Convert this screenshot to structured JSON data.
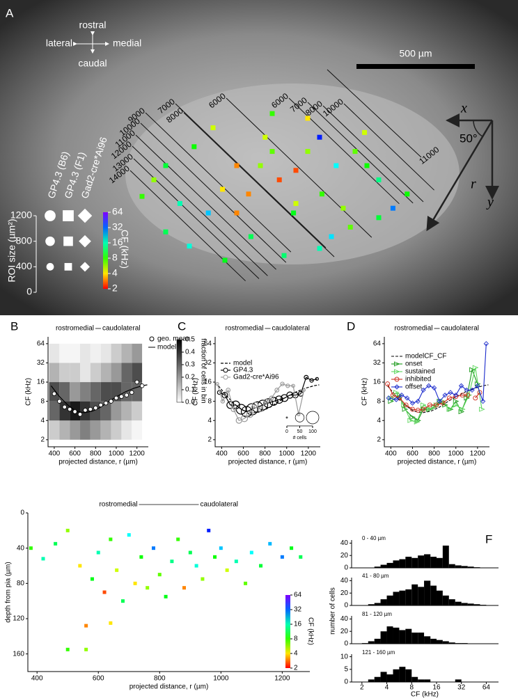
{
  "chart_data": [
    {
      "type": "map",
      "label": "A",
      "rostral": "rostral",
      "caudal": "caudal",
      "lateral": "lateral",
      "medial": "medial",
      "scale_bar": "500 µm",
      "x_axis": "x",
      "y_axis": "y",
      "r_axis": "r",
      "angle": "50°",
      "isolines": [
        7000,
        6000,
        9000,
        8000,
        10000,
        11000,
        12000,
        13000,
        14000,
        6000,
        7000,
        8000,
        10000,
        11000
      ],
      "datasets": [
        "GP4.3 (B6)",
        "GP4.3 (F1)",
        "Gad2-cre*Ai96"
      ],
      "size_label": "ROI size (µm²)",
      "size_ticks": [
        0,
        400,
        800,
        1200
      ],
      "colorbar_label": "CF (kHz)",
      "colorbar_ticks": [
        2,
        4,
        8,
        16,
        32,
        64
      ],
      "colormap": "rainbow",
      "x": [
        600,
        650,
        700,
        760,
        820,
        880,
        940,
        1000,
        1060,
        1120,
        1180,
        1240,
        1300,
        1360,
        1420,
        1480,
        1540,
        1600,
        1660,
        1720,
        700,
        800,
        900,
        1000,
        1100,
        1200,
        1300,
        1400,
        1500,
        1600,
        1050,
        1150,
        1250,
        1350,
        1450,
        1550,
        950,
        1250,
        1350,
        1150
      ],
      "y": [
        830,
        760,
        700,
        860,
        620,
        900,
        800,
        700,
        1000,
        580,
        760,
        900,
        640,
        820,
        700,
        960,
        560,
        760,
        880,
        820,
        980,
        1040,
        540,
        900,
        700,
        1080,
        500,
        1000,
        640,
        920,
        820,
        480,
        720,
        580,
        880,
        700,
        1100,
        860,
        1050,
        640
      ],
      "values": [
        8,
        6,
        11,
        16,
        9,
        24,
        4,
        3,
        12,
        5,
        2.5,
        10,
        6,
        8,
        20,
        7,
        5,
        14,
        30,
        9,
        12,
        18,
        5,
        3,
        6,
        13,
        4,
        22,
        7,
        11,
        3,
        8,
        2.5,
        40,
        6,
        9,
        10,
        5,
        16,
        7
      ]
    },
    {
      "type": "heatmap",
      "label": "B",
      "left": "rostromedial",
      "right": "caudolateral",
      "xlabel": "projected distance, r (µm)",
      "ylabel": "CF (kHz)",
      "xlim": [
        340,
        1310
      ],
      "xticks": [
        400,
        600,
        800,
        1000,
        1200
      ],
      "ylim": [
        1.55,
        82
      ],
      "yticks": [
        2,
        4,
        8,
        16,
        32,
        64
      ],
      "log_y": true,
      "heatmap": {
        "x_bins": [
          350,
          450,
          550,
          650,
          750,
          850,
          950,
          1050,
          1150,
          1250
        ],
        "y_bins": [
          2,
          4,
          8,
          16,
          32,
          64
        ],
        "values": [
          [
            0.1,
            0.15,
            0.2,
            0.25,
            0.2,
            0.15,
            0.1,
            0.05,
            0.02
          ],
          [
            0.3,
            0.4,
            0.45,
            0.4,
            0.35,
            0.3,
            0.2,
            0.15,
            0.1
          ],
          [
            0.35,
            0.3,
            0.2,
            0.25,
            0.3,
            0.35,
            0.35,
            0.3,
            0.3
          ],
          [
            0.15,
            0.1,
            0.1,
            0.05,
            0.1,
            0.15,
            0.2,
            0.3,
            0.35
          ],
          [
            0.05,
            0.02,
            0.02,
            0.05,
            0.03,
            0.05,
            0.1,
            0.15,
            0.2
          ]
        ]
      },
      "colorbar_label": "fraction of cells in bin",
      "colorbar_ticks": [
        {
          "value": 0,
          "label": "0.0"
        },
        0.1,
        0.2,
        0.3,
        0.4,
        0.5
      ],
      "series": [
        {
          "name": "geo. mean",
          "color": "#000",
          "x": [
            400,
            450,
            500,
            550,
            600,
            650,
            700,
            750,
            800,
            850,
            900,
            950,
            1000,
            1050,
            1100,
            1150,
            1200,
            1250
          ],
          "values": [
            10.5,
            8,
            6.5,
            6,
            5.5,
            5,
            5.8,
            6,
            6.3,
            7,
            7.5,
            8,
            9,
            9.5,
            10,
            11,
            16,
            14
          ]
        },
        {
          "name": "model",
          "color": "#000",
          "x": [
            370,
            450,
            530,
            610,
            690,
            770,
            850,
            930,
            1010,
            1090,
            1170,
            1250,
            1300
          ],
          "values": [
            14,
            9.5,
            7,
            5.6,
            5.3,
            5.6,
            6.5,
            8,
            9.6,
            11.3,
            12.8,
            14,
            14.5
          ]
        }
      ]
    },
    {
      "type": "line",
      "label": "C",
      "left": "rostromedial",
      "right": "caudolateral",
      "xlabel": "projected distance, r (µm)",
      "ylabel": "CF (kHz)",
      "xlim": [
        340,
        1310
      ],
      "xticks": [
        400,
        600,
        800,
        1000,
        1200
      ],
      "ylim": [
        1.55,
        82
      ],
      "yticks": [
        2,
        4,
        8,
        16,
        32,
        64
      ],
      "log_y": true,
      "size_label": "# cells",
      "size_ticks": [
        0,
        50,
        100
      ],
      "series": [
        {
          "name": "model",
          "color": "#000",
          "dash": true,
          "x": [
            370,
            450,
            530,
            610,
            690,
            770,
            850,
            930,
            1010,
            1090,
            1170,
            1250,
            1300
          ],
          "values": [
            14,
            9.5,
            7,
            5.6,
            5.3,
            5.6,
            6.5,
            8,
            9.6,
            11.3,
            12.8,
            14,
            14.5
          ]
        },
        {
          "name": "GP4.3",
          "color": "#000",
          "x": [
            380,
            430,
            480,
            530,
            580,
            630,
            680,
            730,
            780,
            830,
            880,
            930,
            980,
            1030,
            1080,
            1130,
            1180,
            1230,
            1280
          ],
          "values": [
            11,
            10,
            7,
            7,
            6,
            5.5,
            6,
            6.5,
            7,
            7.5,
            8,
            8.5,
            9,
            10,
            10,
            10.5,
            19,
            17,
            18
          ],
          "sizes": [
            10,
            20,
            30,
            40,
            60,
            70,
            80,
            70,
            60,
            50,
            40,
            35,
            30,
            25,
            20,
            15,
            10,
            8,
            5
          ]
        },
        {
          "name": "Gad2-cre*Ai96",
          "color": "#999",
          "x": [
            360,
            410,
            460,
            510,
            560,
            610,
            660,
            710,
            760,
            810,
            860,
            910,
            960,
            1010,
            1060,
            1110,
            1160
          ],
          "values": [
            15,
            8,
            12,
            6,
            4,
            4.3,
            5,
            7,
            6,
            8,
            9,
            12,
            15,
            14,
            14,
            5,
            12
          ],
          "sizes": [
            5,
            8,
            10,
            15,
            20,
            25,
            25,
            20,
            15,
            12,
            10,
            10,
            8,
            8,
            6,
            5,
            4
          ]
        }
      ]
    },
    {
      "type": "line",
      "label": "D",
      "left": "rostromedial",
      "right": "caudolateral",
      "xlabel": "projected distance, r (µm)",
      "ylabel": "CF (kHz)",
      "xlim": [
        340,
        1310
      ],
      "xticks": [
        400,
        600,
        800,
        1000,
        1200
      ],
      "ylim": [
        1.55,
        82
      ],
      "yticks": [
        2,
        4,
        8,
        16,
        32,
        64
      ],
      "log_y": true,
      "series": [
        {
          "name": "modelCF_CF",
          "color": "#000",
          "dash": true,
          "x": [
            370,
            450,
            530,
            610,
            690,
            770,
            850,
            930,
            1010,
            1090,
            1170,
            1250,
            1300
          ],
          "values": [
            14,
            9.5,
            7,
            5.6,
            5.3,
            5.6,
            6.5,
            8,
            9.6,
            11.3,
            12.8,
            14,
            14.5
          ]
        },
        {
          "name": "onset",
          "color": "#1a9a1a",
          "marker": "triangle",
          "x": [
            400,
            480,
            530,
            600,
            650,
            700,
            750,
            800,
            850,
            900,
            950,
            1000,
            1050,
            1100,
            1150,
            1200
          ],
          "values": [
            8,
            10,
            6,
            4.5,
            4,
            6,
            6,
            6.5,
            8,
            7,
            6,
            8,
            5.5,
            9,
            25,
            15
          ]
        },
        {
          "name": "sustained",
          "color": "#5cd65c",
          "marker": "triangle",
          "x": [
            400,
            450,
            520,
            580,
            640,
            700,
            760,
            820,
            880,
            940,
            1000,
            1060,
            1120,
            1180,
            1240
          ],
          "values": [
            9,
            11,
            7,
            4,
            3.8,
            7,
            6,
            7,
            8,
            6,
            7,
            6,
            10,
            27,
            6
          ]
        },
        {
          "name": "inhibited",
          "color": "#cc2a1a",
          "marker": "circle",
          "x": [
            370,
            420,
            480,
            540,
            600,
            650,
            700,
            760,
            820,
            880,
            940,
            1000,
            1060,
            1110,
            1150,
            1180,
            1220
          ],
          "values": [
            15,
            10,
            9,
            7,
            6,
            5.8,
            6,
            7,
            7,
            7.5,
            9,
            9.5,
            10,
            10,
            null,
            9,
            11
          ]
        },
        {
          "name": "offset",
          "color": "#1a2acc",
          "marker": "diamond",
          "x": [
            380,
            450,
            500,
            550,
            600,
            650,
            700,
            750,
            800,
            850,
            900,
            950,
            1000,
            1050,
            1100,
            1150,
            1200,
            1250,
            1280
          ],
          "values": [
            9,
            8.5,
            10,
            9,
            7.5,
            8,
            12,
            14,
            13,
            8,
            10,
            11,
            10,
            14,
            12,
            12,
            14,
            8,
            64
          ]
        }
      ]
    },
    {
      "type": "scatter",
      "label": "E",
      "left": "rostromedial",
      "right": "caudolateral",
      "xlabel": "projected distance, r (µm)",
      "ylabel": "depth from pia (µm)",
      "xlim": [
        370,
        1290
      ],
      "xticks": [
        400,
        600,
        800,
        1000,
        1200
      ],
      "ylim": [
        0,
        180
      ],
      "yticks": [
        0,
        40,
        80,
        120,
        160
      ],
      "y_inverted": true,
      "colorbar_label": "CF (kHz)",
      "colorbar_ticks": [
        2,
        4,
        8,
        16,
        32,
        64
      ],
      "colormap": "rainbow",
      "x": [
        380,
        420,
        460,
        500,
        540,
        560,
        580,
        600,
        620,
        640,
        660,
        680,
        700,
        720,
        740,
        760,
        780,
        800,
        820,
        840,
        860,
        880,
        900,
        920,
        940,
        960,
        980,
        1000,
        1020,
        1050,
        1080,
        1100,
        1130,
        1160,
        1200,
        1230,
        1260,
        500,
        560,
        640
      ],
      "y": [
        40,
        52,
        35,
        20,
        60,
        128,
        75,
        45,
        90,
        30,
        65,
        100,
        25,
        80,
        50,
        85,
        40,
        70,
        95,
        55,
        30,
        85,
        45,
        60,
        75,
        20,
        50,
        40,
        65,
        55,
        80,
        45,
        60,
        35,
        50,
        40,
        50,
        155,
        155,
        125
      ],
      "values": [
        8,
        16,
        12,
        6,
        4,
        3,
        10,
        16,
        2.5,
        8,
        5,
        12,
        20,
        4,
        9,
        6,
        30,
        7,
        10,
        14,
        8,
        3,
        12,
        18,
        6,
        40,
        9,
        24,
        5,
        16,
        7,
        20,
        11,
        25,
        30,
        10,
        12,
        8,
        6,
        4
      ]
    },
    {
      "type": "histogram",
      "label": "F",
      "xlabel": "CF (kHz)",
      "ylabel": "number of cells",
      "xlim": [
        1.5,
        90
      ],
      "xticks": [
        2,
        4,
        8,
        16,
        32,
        64
      ],
      "log_x": true,
      "color": "#000",
      "bins": [
        1.68,
        2,
        2.38,
        2.83,
        3.36,
        4,
        4.76,
        5.66,
        6.73,
        8,
        9.51,
        11.3,
        13.5,
        16,
        19,
        22.6,
        26.9,
        32,
        38.1,
        45.3,
        53.8,
        64,
        76.1
      ],
      "panels": [
        {
          "title": "0 - 40 µm",
          "ylim": [
            0,
            45
          ],
          "yticks": [
            0,
            20,
            40
          ],
          "counts": [
            0,
            0,
            0,
            2,
            5,
            8,
            12,
            14,
            18,
            16,
            20,
            22,
            18,
            16,
            36,
            6,
            4,
            3,
            2,
            1,
            0,
            0
          ]
        },
        {
          "title": "41 - 80 µm",
          "ylim": [
            0,
            45
          ],
          "yticks": [
            0,
            20,
            40
          ],
          "counts": [
            0,
            0,
            2,
            4,
            10,
            16,
            22,
            24,
            26,
            34,
            30,
            40,
            32,
            24,
            16,
            10,
            6,
            4,
            3,
            2,
            1,
            0
          ]
        },
        {
          "title": "81 - 120 µm",
          "ylim": [
            0,
            45
          ],
          "yticks": [
            0,
            20,
            40
          ],
          "counts": [
            0,
            1,
            4,
            8,
            20,
            28,
            26,
            22,
            24,
            18,
            18,
            12,
            8,
            6,
            4,
            2,
            1,
            1,
            0,
            0,
            0,
            0
          ]
        },
        {
          "title": "121 - 160 µm",
          "ylim": [
            0,
            11
          ],
          "yticks": [
            0,
            5,
            10
          ],
          "counts": [
            0,
            0,
            1,
            2,
            4,
            3,
            5,
            6,
            5,
            2,
            1,
            1,
            0,
            0,
            0,
            0,
            1,
            0,
            0,
            0,
            0,
            0
          ]
        }
      ]
    }
  ]
}
